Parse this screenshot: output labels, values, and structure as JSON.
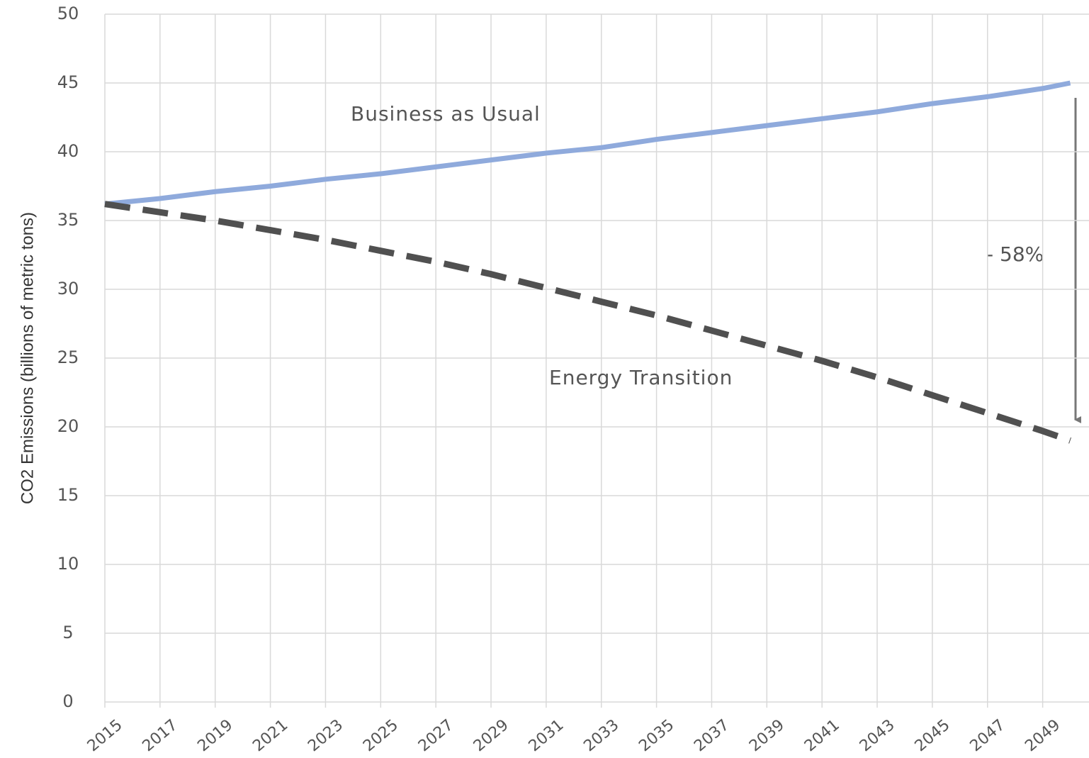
{
  "chart_data": {
    "type": "line",
    "y_label": "CO2 Emissions (billions of metric tons)",
    "annotation": "- 58%",
    "x": [
      2015,
      2017,
      2019,
      2021,
      2023,
      2025,
      2027,
      2029,
      2031,
      2033,
      2035,
      2037,
      2039,
      2041,
      2043,
      2045,
      2047,
      2049,
      2050
    ],
    "series": [
      {
        "name": "Business as Usual",
        "color": "#8faadc",
        "dashed": false,
        "values": [
          36.2,
          36.6,
          37.1,
          37.5,
          38.0,
          38.4,
          38.9,
          39.4,
          39.9,
          40.3,
          40.9,
          41.4,
          41.9,
          42.4,
          42.9,
          43.5,
          44.0,
          44.6,
          45.0
        ]
      },
      {
        "name": "Energy Transition",
        "color": "#505050",
        "dashed": true,
        "values": [
          36.2,
          35.6,
          35.0,
          34.3,
          33.6,
          32.8,
          32.0,
          31.1,
          30.1,
          29.1,
          28.1,
          27.0,
          25.9,
          24.8,
          23.6,
          22.3,
          21.0,
          19.7,
          19.0
        ]
      }
    ],
    "xlim": [
      2015,
      2050.5
    ],
    "xticks": [
      2015,
      2017,
      2019,
      2021,
      2023,
      2025,
      2027,
      2029,
      2031,
      2033,
      2035,
      2037,
      2039,
      2041,
      2043,
      2045,
      2047,
      2049
    ],
    "ylim": [
      0,
      50
    ],
    "yticks": [
      0,
      5,
      10,
      15,
      20,
      25,
      30,
      35,
      40,
      45,
      50
    ],
    "grid": true
  }
}
